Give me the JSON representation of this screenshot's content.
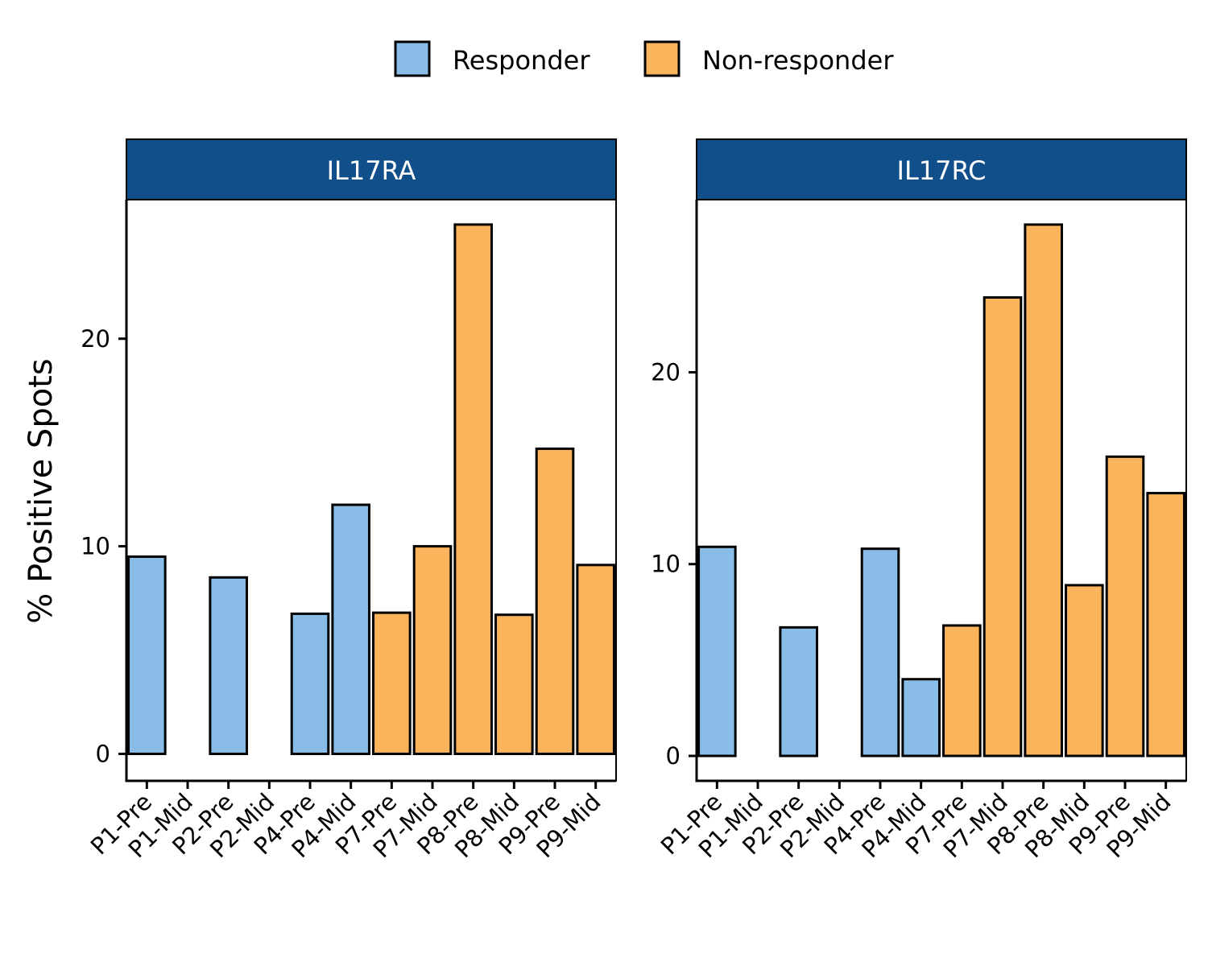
{
  "chart_data": {
    "type": "bar",
    "ylabel": "% Positive Spots",
    "legend": {
      "position": "top",
      "entries": [
        {
          "name": "Responder",
          "color": "#89BCE6"
        },
        {
          "name": "Non-responder",
          "color": "#FBB35C"
        }
      ]
    },
    "categories": [
      "P1-Pre",
      "P1-Mid",
      "P2-Pre",
      "P2-Mid",
      "P4-Pre",
      "P4-Mid",
      "P7-Pre",
      "P7-Mid",
      "P8-Pre",
      "P8-Mid",
      "P9-Pre",
      "P9-Mid"
    ],
    "group": [
      "Responder",
      "Responder",
      "Responder",
      "Responder",
      "Responder",
      "Responder",
      "Non-responder",
      "Non-responder",
      "Non-responder",
      "Non-responder",
      "Non-responder",
      "Non-responder"
    ],
    "strip_color": "#114F8A",
    "panels": [
      {
        "title": "IL17RA",
        "ylim": [
          -1.3,
          26.7
        ],
        "yticks": [
          0,
          10,
          20
        ],
        "values": [
          9.5,
          null,
          8.5,
          null,
          6.75,
          12.0,
          6.8,
          10.0,
          25.5,
          6.7,
          14.7,
          9.1
        ]
      },
      {
        "title": "IL17RC",
        "ylim": [
          -1.3,
          29.0
        ],
        "yticks": [
          0,
          10,
          20
        ],
        "values": [
          10.9,
          null,
          6.7,
          null,
          10.8,
          4.0,
          6.8,
          23.9,
          27.7,
          8.9,
          15.6,
          13.7
        ]
      }
    ]
  }
}
